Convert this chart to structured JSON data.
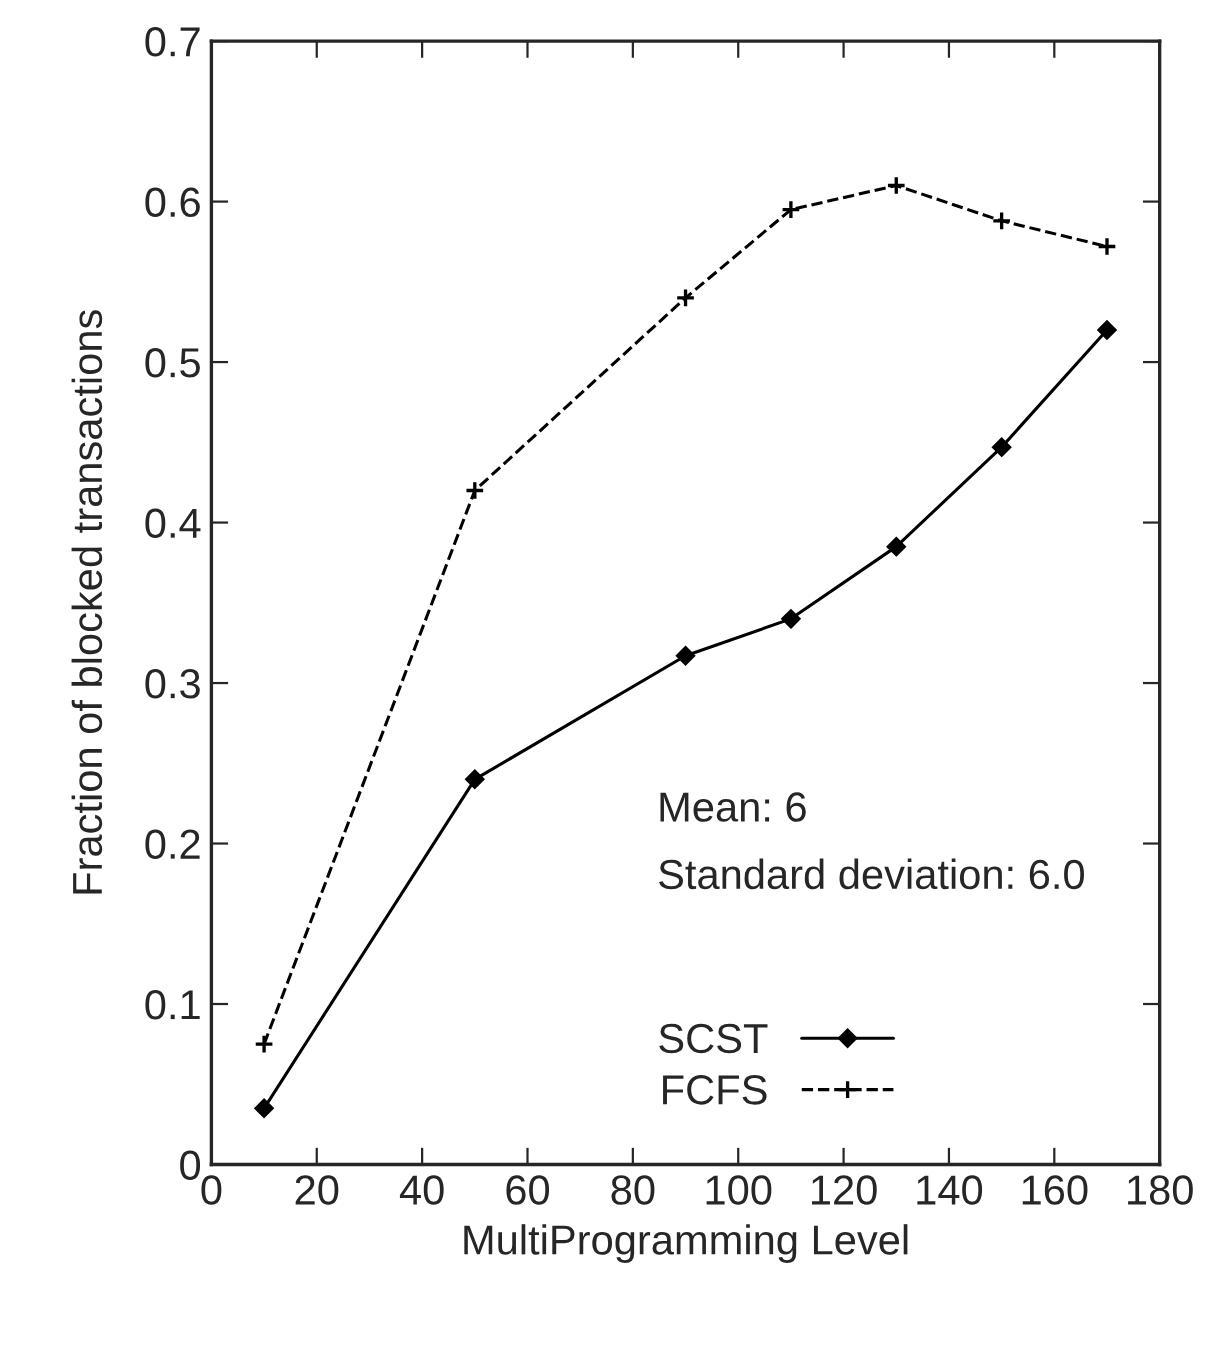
{
  "chart_data": {
    "type": "line",
    "xlabel": "MultiProgramming Level",
    "ylabel": "Fraction of blocked transactions",
    "x": [
      10,
      50,
      90,
      110,
      130,
      150,
      170
    ],
    "series": [
      {
        "name": "SCST",
        "color": "#000000",
        "marker": "diamond",
        "line_style": "solid",
        "values": [
          0.035,
          0.24,
          0.317,
          0.34,
          0.385,
          0.447,
          0.52
        ]
      },
      {
        "name": "FCFS",
        "color": "#000000",
        "marker": "cross",
        "line_style": "dashed",
        "values": [
          0.075,
          0.42,
          0.54,
          0.595,
          0.61,
          0.588,
          0.572
        ]
      }
    ],
    "xlim": [
      0,
      180
    ],
    "xticks": [
      0,
      20,
      40,
      60,
      80,
      100,
      120,
      140,
      160,
      180
    ],
    "ylim": [
      0,
      0.7
    ],
    "yticks": [
      0,
      0.1,
      0.2,
      0.3,
      0.4,
      0.5,
      0.6,
      0.7
    ],
    "annotations": [
      "Mean: 6",
      "Standard deviation: 6.0"
    ],
    "legend": "bottom right",
    "grid": false
  }
}
